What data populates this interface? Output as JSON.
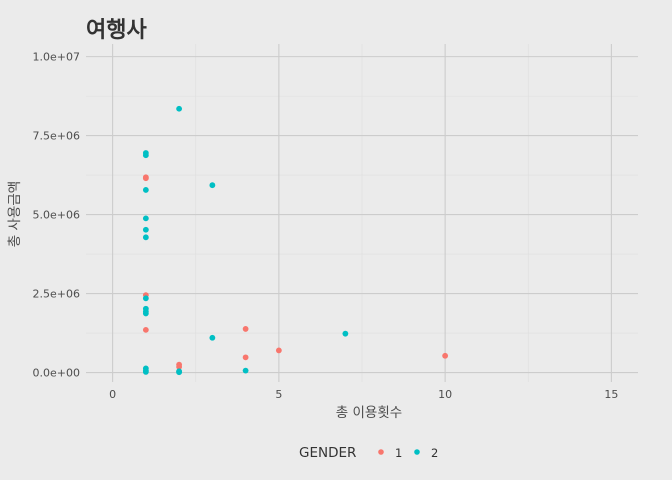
{
  "chart_data": {
    "type": "scatter",
    "title": "여행사",
    "xlabel": "총 이용횟수",
    "ylabel": "총 사용금액",
    "xlim": [
      -0.8,
      15.8
    ],
    "ylim": [
      -300000,
      10400000
    ],
    "x_ticks": [
      0,
      5,
      10,
      15
    ],
    "x_tick_labels": [
      "0",
      "5",
      "10",
      "15"
    ],
    "y_ticks": [
      0,
      2500000,
      5000000,
      7500000,
      10000000
    ],
    "y_tick_labels": [
      "0.0e+00",
      "2.5e+06",
      "5.0e+06",
      "7.5e+06",
      "1.0e+07"
    ],
    "grid": true,
    "legend": {
      "title": "GENDER",
      "position": "bottom",
      "entries": [
        {
          "label": "1",
          "color": "#f8766d"
        },
        {
          "label": "2",
          "color": "#00bfc4"
        }
      ]
    },
    "series": [
      {
        "name": "1",
        "color": "#f8766d",
        "points": [
          [
            1,
            6180000
          ],
          [
            1,
            6150000
          ],
          [
            1,
            2450000
          ],
          [
            1,
            1350000
          ],
          [
            2,
            250000
          ],
          [
            2,
            180000
          ],
          [
            2,
            30000
          ],
          [
            4,
            1380000
          ],
          [
            4,
            480000
          ],
          [
            5,
            700000
          ],
          [
            10,
            530000
          ]
        ]
      },
      {
        "name": "2",
        "color": "#00bfc4",
        "points": [
          [
            1,
            6950000
          ],
          [
            1,
            6880000
          ],
          [
            1,
            5780000
          ],
          [
            1,
            4880000
          ],
          [
            1,
            4520000
          ],
          [
            1,
            4280000
          ],
          [
            1,
            2350000
          ],
          [
            1,
            2020000
          ],
          [
            1,
            1930000
          ],
          [
            1,
            1870000
          ],
          [
            1,
            130000
          ],
          [
            1,
            60000
          ],
          [
            1,
            20000
          ],
          [
            2,
            8350000
          ],
          [
            2,
            40000
          ],
          [
            2,
            10000
          ],
          [
            3,
            5930000
          ],
          [
            3,
            1100000
          ],
          [
            4,
            60000
          ],
          [
            7,
            1230000
          ]
        ]
      }
    ]
  }
}
